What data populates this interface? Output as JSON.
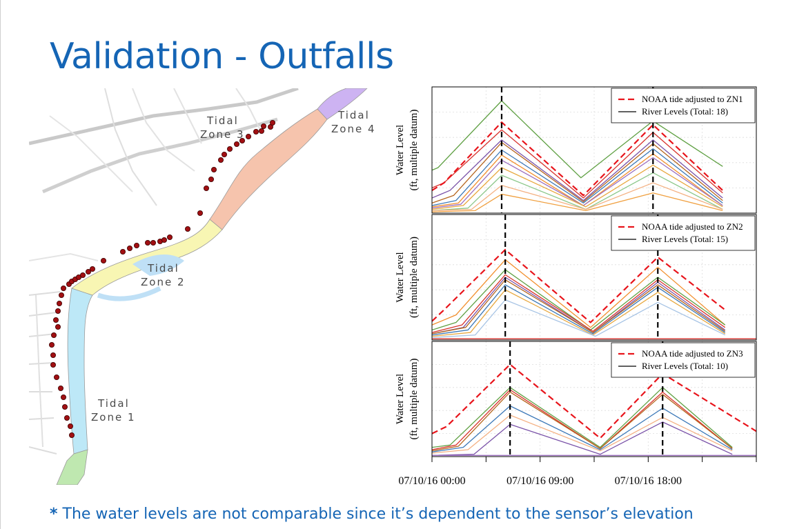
{
  "slide": {
    "title": "Validation - Outfalls",
    "footnote_star": "*",
    "footnote": "The water levels are not comparable since it’s dependent to the sensor’s elevation"
  },
  "map": {
    "zones": [
      {
        "line1": "Tidal",
        "line2": "Zone 1",
        "color": "#bde8f7"
      },
      {
        "line1": "Tidal",
        "line2": "Zone 2",
        "color": "#f8f6b3"
      },
      {
        "line1": "Tidal",
        "line2": "Zone 3",
        "color": "#f6c4ad"
      },
      {
        "line1": "Tidal",
        "line2": "Zone 4",
        "color": "#cdb3f2"
      }
    ],
    "outfall_color": "#a10f12"
  },
  "chart_data": {
    "type": "line",
    "x_tick_labels": [
      "07/10/16 00:00",
      "07/10/16 09:00",
      "07/10/16 18:00"
    ],
    "xlim": [
      0,
      27
    ],
    "x_ticks": [
      0,
      4.5,
      9,
      13.5,
      18,
      22.5,
      27
    ],
    "labeled_ticks": [
      0,
      9,
      18
    ],
    "panels": [
      {
        "ylabel_line1": "Water Level",
        "ylabel_line2": "(ft, multiple datum)",
        "legend": [
          "NOAA tide adjusted to ZN1",
          "River Levels (Total: 18)"
        ],
        "peak_times": [
          5.8,
          18.4
        ],
        "noaa": [
          [
            0,
            0.18
          ],
          [
            1,
            0.24
          ],
          [
            5.8,
            0.72
          ],
          [
            12.6,
            0.14
          ],
          [
            18.4,
            0.7
          ],
          [
            24.2,
            0.18
          ]
        ],
        "rivers": [
          {
            "color": "#5fa043",
            "points": [
              [
                0,
                0.34
              ],
              [
                0.5,
                0.36
              ],
              [
                5.8,
                0.89
              ],
              [
                12.4,
                0.28
              ],
              [
                18.4,
                0.73
              ],
              [
                24.2,
                0.37
              ]
            ]
          },
          {
            "color": "#d8322c",
            "points": [
              [
                0,
                0.2
              ],
              [
                1,
                0.24
              ],
              [
                5.8,
                0.66
              ],
              [
                12.6,
                0.12
              ],
              [
                18.4,
                0.64
              ],
              [
                24.2,
                0.16
              ]
            ]
          },
          {
            "color": "#7a52a8",
            "points": [
              [
                0,
                0.12
              ],
              [
                1.5,
                0.18
              ],
              [
                5.8,
                0.58
              ],
              [
                12.6,
                0.1
              ],
              [
                18.4,
                0.58
              ],
              [
                24.2,
                0.12
              ]
            ]
          },
          {
            "color": "#b5651d",
            "points": [
              [
                0,
                0.08
              ],
              [
                1.8,
                0.14
              ],
              [
                5.8,
                0.56
              ],
              [
                12.6,
                0.09
              ],
              [
                18.4,
                0.55
              ],
              [
                24.2,
                0.1
              ]
            ]
          },
          {
            "color": "#3b78b8",
            "points": [
              [
                0,
                0.06
              ],
              [
                2,
                0.1
              ],
              [
                5.8,
                0.5
              ],
              [
                12.6,
                0.08
              ],
              [
                18.4,
                0.51
              ],
              [
                24.2,
                0.08
              ]
            ]
          },
          {
            "color": "#f28e2b",
            "points": [
              [
                0,
                0.05
              ],
              [
                2.2,
                0.08
              ],
              [
                5.8,
                0.46
              ],
              [
                12.6,
                0.06
              ],
              [
                18.4,
                0.47
              ],
              [
                24.2,
                0.06
              ]
            ]
          },
          {
            "color": "#9c6fbf",
            "points": [
              [
                0,
                0.04
              ],
              [
                2.4,
                0.07
              ],
              [
                5.8,
                0.42
              ],
              [
                12.6,
                0.06
              ],
              [
                18.4,
                0.44
              ],
              [
                24.2,
                0.06
              ]
            ]
          },
          {
            "color": "#e8a83f",
            "points": [
              [
                0,
                0.03
              ],
              [
                2.6,
                0.06
              ],
              [
                5.8,
                0.36
              ],
              [
                12.8,
                0.05
              ],
              [
                18.4,
                0.38
              ],
              [
                24.2,
                0.05
              ]
            ]
          },
          {
            "color": "#8bc78a",
            "points": [
              [
                0,
                0.02
              ],
              [
                3,
                0.04
              ],
              [
                5.8,
                0.3
              ],
              [
                12.8,
                0.03
              ],
              [
                18.4,
                0.32
              ],
              [
                24.2,
                0.03
              ]
            ]
          },
          {
            "color": "#f4b183",
            "points": [
              [
                0,
                0.02
              ],
              [
                3.3,
                0.03
              ],
              [
                5.8,
                0.22
              ],
              [
                12.8,
                0.03
              ],
              [
                18.4,
                0.24
              ],
              [
                24.2,
                0.03
              ]
            ]
          },
          {
            "color": "#f0a040",
            "points": [
              [
                0,
                0.01
              ],
              [
                3.6,
                0.02
              ],
              [
                5.8,
                0.15
              ],
              [
                12.8,
                0.02
              ],
              [
                18.4,
                0.16
              ],
              [
                24.2,
                0.02
              ]
            ]
          }
        ]
      },
      {
        "ylabel_line1": "Water Level",
        "ylabel_line2": "(ft, multiple datum)",
        "legend": [
          "NOAA tide adjusted to ZN2",
          "River Levels (Total: 15)"
        ],
        "peak_times": [
          6.1,
          18.8
        ],
        "noaa": [
          [
            0,
            0.15
          ],
          [
            1,
            0.24
          ],
          [
            6.1,
            0.72
          ],
          [
            13.2,
            0.14
          ],
          [
            18.8,
            0.66
          ],
          [
            24.4,
            0.24
          ]
        ],
        "rivers": [
          {
            "color": "#f28e2b",
            "points": [
              [
                0,
                0.12
              ],
              [
                2,
                0.2
              ],
              [
                6.1,
                0.64
              ],
              [
                13.2,
                0.1
              ],
              [
                18.8,
                0.58
              ],
              [
                24.4,
                0.12
              ]
            ]
          },
          {
            "color": "#5fa043",
            "points": [
              [
                0,
                0.08
              ],
              [
                2,
                0.14
              ],
              [
                6.1,
                0.56
              ],
              [
                13.2,
                0.08
              ],
              [
                18.8,
                0.5
              ],
              [
                24.4,
                0.12
              ]
            ]
          },
          {
            "color": "#d8322c",
            "points": [
              [
                0,
                0.06
              ],
              [
                2.5,
                0.12
              ],
              [
                6.1,
                0.52
              ],
              [
                13.4,
                0.07
              ],
              [
                18.8,
                0.48
              ],
              [
                24.4,
                0.1
              ]
            ]
          },
          {
            "color": "#7a52a8",
            "points": [
              [
                0,
                0.05
              ],
              [
                2.6,
                0.1
              ],
              [
                6.1,
                0.5
              ],
              [
                13.4,
                0.06
              ],
              [
                18.8,
                0.46
              ],
              [
                24.4,
                0.08
              ]
            ]
          },
          {
            "color": "#b5651d",
            "points": [
              [
                0,
                0.05
              ],
              [
                2.8,
                0.1
              ],
              [
                6.1,
                0.48
              ],
              [
                13.4,
                0.06
              ],
              [
                18.8,
                0.44
              ],
              [
                24.4,
                0.07
              ]
            ]
          },
          {
            "color": "#3b78b8",
            "points": [
              [
                0,
                0.04
              ],
              [
                3,
                0.08
              ],
              [
                6.1,
                0.44
              ],
              [
                13.4,
                0.05
              ],
              [
                18.8,
                0.42
              ],
              [
                24.4,
                0.06
              ]
            ]
          },
          {
            "color": "#e8a83f",
            "points": [
              [
                0,
                0.03
              ],
              [
                3.2,
                0.06
              ],
              [
                6.1,
                0.4
              ],
              [
                13.4,
                0.04
              ],
              [
                18.8,
                0.38
              ],
              [
                24.4,
                0.05
              ]
            ]
          },
          {
            "color": "#a7c4e5",
            "points": [
              [
                0,
                0.02
              ],
              [
                3.6,
                0.04
              ],
              [
                6.1,
                0.32
              ],
              [
                13.6,
                0.03
              ],
              [
                18.8,
                0.3
              ],
              [
                24.4,
                0.04
              ]
            ]
          },
          {
            "color": "#d8322c",
            "points": [
              [
                0,
                0.01
              ],
              [
                27,
                0.01
              ]
            ]
          }
        ]
      },
      {
        "ylabel_line1": "Water Level",
        "ylabel_line2": "(ft, multiple datum)",
        "legend": [
          "NOAA tide adjusted to ZN3",
          "River Levels (Total: 10)"
        ],
        "peak_times": [
          6.5,
          19.2
        ],
        "noaa": [
          [
            0,
            0.2
          ],
          [
            1.2,
            0.26
          ],
          [
            6.5,
            0.8
          ],
          [
            14,
            0.16
          ],
          [
            19.2,
            0.72
          ],
          [
            27,
            0.22
          ]
        ],
        "rivers": [
          {
            "color": "#5fa043",
            "points": [
              [
                0,
                0.08
              ],
              [
                1.5,
                0.1
              ],
              [
                6.5,
                0.6
              ],
              [
                14,
                0.08
              ],
              [
                19.2,
                0.6
              ],
              [
                25,
                0.08
              ]
            ]
          },
          {
            "color": "#d8322c",
            "points": [
              [
                0,
                0.06
              ],
              [
                2,
                0.1
              ],
              [
                6.5,
                0.58
              ],
              [
                14,
                0.07
              ],
              [
                19.2,
                0.56
              ],
              [
                25,
                0.07
              ]
            ]
          },
          {
            "color": "#b5651d",
            "points": [
              [
                0,
                0.05
              ],
              [
                2.2,
                0.09
              ],
              [
                6.5,
                0.56
              ],
              [
                14,
                0.07
              ],
              [
                19.2,
                0.54
              ],
              [
                25,
                0.07
              ]
            ]
          },
          {
            "color": "#3b78b8",
            "points": [
              [
                0,
                0.04
              ],
              [
                2.6,
                0.08
              ],
              [
                6.5,
                0.44
              ],
              [
                14,
                0.06
              ],
              [
                19.2,
                0.42
              ],
              [
                25,
                0.06
              ]
            ]
          },
          {
            "color": "#f4b183",
            "points": [
              [
                0,
                0.03
              ],
              [
                3,
                0.06
              ],
              [
                6.5,
                0.36
              ],
              [
                14,
                0.05
              ],
              [
                19.2,
                0.34
              ],
              [
                25,
                0.05
              ]
            ]
          },
          {
            "color": "#7a52a8",
            "points": [
              [
                0,
                0.01
              ],
              [
                3.5,
                0.02
              ],
              [
                6.5,
                0.28
              ],
              [
                14,
                0.02
              ],
              [
                19.2,
                0.3
              ],
              [
                25,
                0.02
              ]
            ]
          },
          {
            "color": "#9c6fbf",
            "points": [
              [
                0,
                0.01
              ],
              [
                27,
                0.01
              ]
            ]
          }
        ]
      }
    ]
  }
}
